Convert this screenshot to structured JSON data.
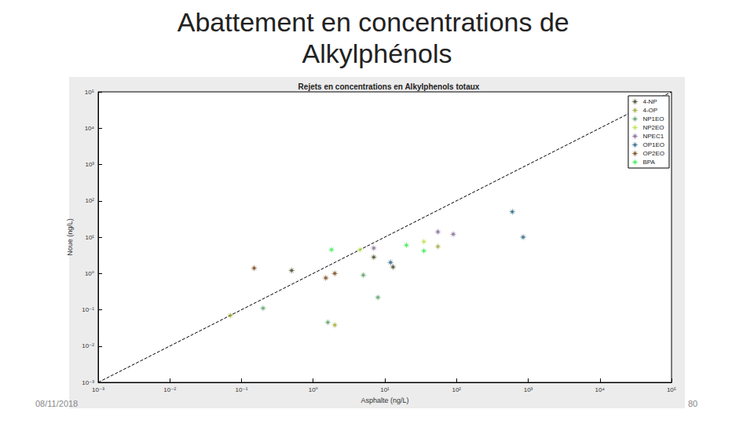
{
  "slide": {
    "title": "Abattement en concentrations de Alkylphénols",
    "footer_date": "08/11/2018",
    "page_number": "80"
  },
  "chart_data": {
    "type": "scatter",
    "title": "Rejets en concentrations en Alkylphenols totaux",
    "x_label": "Asphalte (ng/L)",
    "y_label": "Noue (ng/L)",
    "log": true,
    "grid": false,
    "legend": "top-right",
    "marker": "asterisk",
    "xlim": [
      0.001,
      100000
    ],
    "ylim": [
      0.001,
      100000
    ],
    "xticks": [
      {
        "value": 0.001,
        "label": "10⁻³"
      },
      {
        "value": 0.01,
        "label": "10⁻²"
      },
      {
        "value": 0.1,
        "label": "10⁻¹"
      },
      {
        "value": 1,
        "label": "10⁰"
      },
      {
        "value": 10,
        "label": "10¹"
      },
      {
        "value": 100,
        "label": "10²"
      },
      {
        "value": 1000,
        "label": "10³"
      },
      {
        "value": 10000,
        "label": "10⁴"
      },
      {
        "value": 100000,
        "label": "10⁵"
      }
    ],
    "yticks": [
      {
        "value": 0.001,
        "label": "10⁻³"
      },
      {
        "value": 0.01,
        "label": "10⁻²"
      },
      {
        "value": 0.1,
        "label": "10⁻¹"
      },
      {
        "value": 1,
        "label": "10⁰"
      },
      {
        "value": 10,
        "label": "10¹"
      },
      {
        "value": 100,
        "label": "10²"
      },
      {
        "value": 1000,
        "label": "10³"
      },
      {
        "value": 10000,
        "label": "10⁴"
      },
      {
        "value": 100000,
        "label": "10⁵"
      }
    ],
    "series": [
      {
        "name": "4-NP",
        "color": "#3a3a16",
        "x": [
          0.5,
          7,
          13
        ],
        "values": [
          1.2,
          2.8,
          1.5
        ]
      },
      {
        "name": "4-OP",
        "color": "#9ba428",
        "x": [
          0.07,
          2,
          55
        ],
        "values": [
          0.07,
          0.038,
          5.5
        ]
      },
      {
        "name": "NP1EO",
        "color": "#4f9a60",
        "x": [
          0.2,
          5,
          8,
          1.6
        ],
        "values": [
          0.11,
          0.9,
          0.22,
          0.045
        ]
      },
      {
        "name": "NP2EO",
        "color": "#b8e03c",
        "x": [
          4.5,
          35
        ],
        "values": [
          4.5,
          7.5
        ]
      },
      {
        "name": "NPEC1",
        "color": "#7a5c8c",
        "x": [
          7,
          55,
          90
        ],
        "values": [
          5,
          14,
          12
        ]
      },
      {
        "name": "OP1EO",
        "color": "#1a5a78",
        "x": [
          12,
          600,
          850
        ],
        "values": [
          2,
          50,
          10
        ]
      },
      {
        "name": "OP2EO",
        "color": "#6b3a0a",
        "x": [
          0.15,
          1.5,
          2
        ],
        "values": [
          1.4,
          0.75,
          1
        ]
      },
      {
        "name": "BPA",
        "color": "#2ee84a",
        "x": [
          1.8,
          20,
          35
        ],
        "values": [
          4.5,
          6,
          4.2
        ]
      }
    ],
    "reference_line": {
      "x": [
        0.001,
        100000
      ],
      "values": [
        0.001,
        100000
      ],
      "color": "#000000",
      "line_style": "dashed"
    }
  }
}
